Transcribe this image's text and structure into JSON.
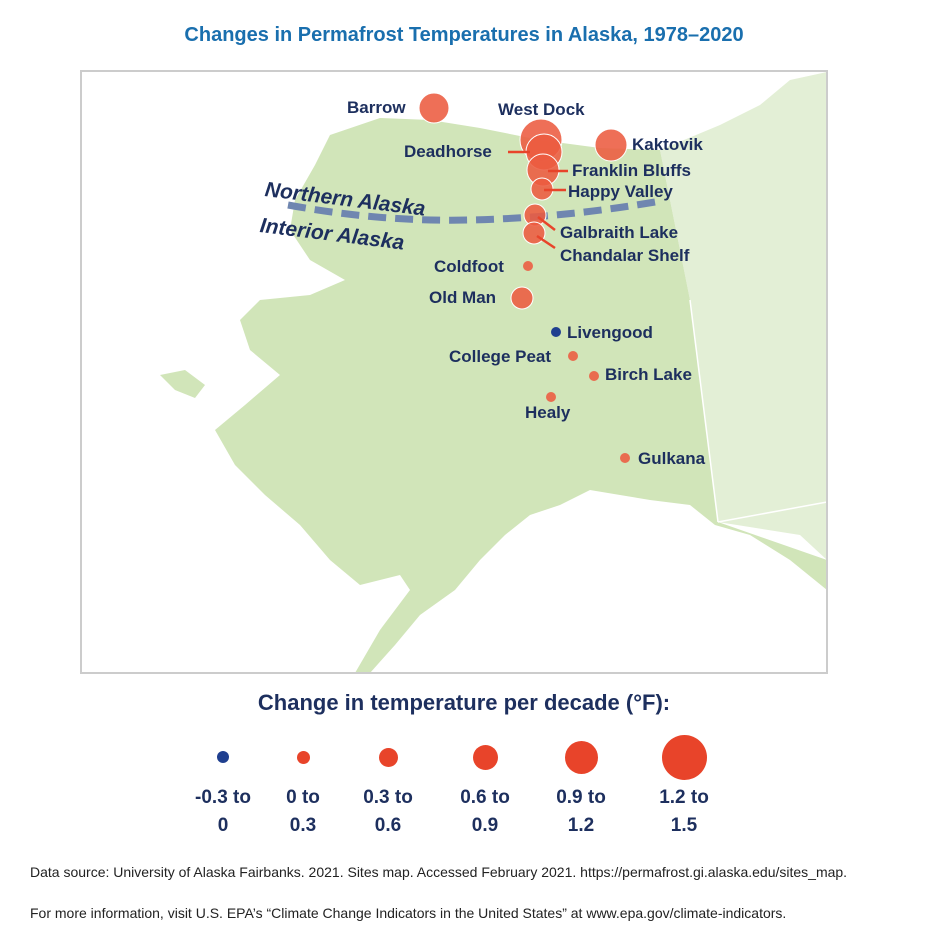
{
  "title": "Changes in Permafrost Temperatures in Alaska, 1978–2020",
  "map": {
    "land_color": "#d1e5b9",
    "neighbor_color": "#e3efd6",
    "divider_color": "#6f86b0",
    "regions": {
      "north": "Northern Alaska",
      "interior": "Interior Alaska"
    },
    "sites": [
      {
        "name": "Barrow",
        "change_range": "0.9 to 1.2"
      },
      {
        "name": "West Dock",
        "change_range": "1.2 to 1.5"
      },
      {
        "name": "Deadhorse",
        "change_range": "1.2 to 1.5"
      },
      {
        "name": "Kaktovik",
        "change_range": "0.9 to 1.2"
      },
      {
        "name": "Franklin Bluffs",
        "change_range": "0.9 to 1.2"
      },
      {
        "name": "Happy Valley",
        "change_range": "0.6 to 0.9"
      },
      {
        "name": "Galbraith Lake",
        "change_range": "0.6 to 0.9"
      },
      {
        "name": "Chandalar Shelf",
        "change_range": "0.6 to 0.9"
      },
      {
        "name": "Coldfoot",
        "change_range": "0 to 0.3"
      },
      {
        "name": "Old Man",
        "change_range": "0.6 to 0.9"
      },
      {
        "name": "Livengood",
        "change_range": "-0.3 to 0"
      },
      {
        "name": "College Peat",
        "change_range": "0 to 0.3"
      },
      {
        "name": "Birch Lake",
        "change_range": "0 to 0.3"
      },
      {
        "name": "Healy",
        "change_range": "0 to 0.3"
      },
      {
        "name": "Gulkana",
        "change_range": "0 to 0.3"
      }
    ]
  },
  "legend": {
    "title": "Change in temperature per decade (°F):",
    "items": [
      {
        "label": "-0.3 to\n0",
        "color": "#1f3f8f"
      },
      {
        "label": "0 to\n0.3",
        "color": "#e8442a"
      },
      {
        "label": "0.3 to\n0.6",
        "color": "#e8442a"
      },
      {
        "label": "0.6 to\n0.9",
        "color": "#e8442a"
      },
      {
        "label": "0.9 to\n1.2",
        "color": "#e8442a"
      },
      {
        "label": "1.2 to\n1.5",
        "color": "#e8442a"
      }
    ]
  },
  "source": "Data source: University of Alaska Fairbanks. 2021. Sites map. Accessed February 2021. https://permafrost.gi.alaska.edu/sites_map.",
  "more_info": "For more information, visit U.S. EPA’s “Climate Change Indicators in the United States” at www.epa.gov/climate-indicators."
}
